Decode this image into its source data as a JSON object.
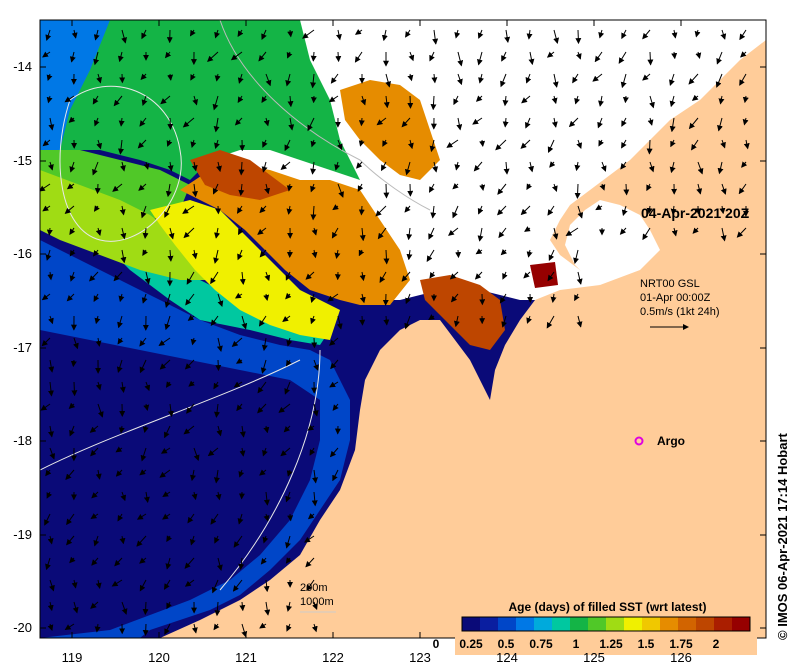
{
  "map": {
    "y_ticks": [
      "-14",
      "-15",
      "-16",
      "-17",
      "-18",
      "-19",
      "-20"
    ],
    "x_ticks": [
      "119",
      "120",
      "121",
      "122",
      "123",
      "124",
      "125",
      "126"
    ],
    "timestamp": "04-Apr-2021 20Z",
    "current_legend": {
      "line1": "NRT00 GSL",
      "line2": "01-Apr 00:00Z",
      "line3": "0.5m/s (1kt 24h)"
    },
    "argo_label": "Argo",
    "contour_legend": {
      "line1": "200m",
      "line2": "1000m"
    },
    "credit": "IMOS 06-Apr-2021 17:14 Hobart",
    "colorbar": {
      "title": "Age (days) of filled SST (wrt latest)",
      "ticks": [
        "0",
        "0.25",
        "0.5",
        "0.75",
        "1",
        "1.25",
        "1.5",
        "1.75",
        "2"
      ],
      "colors": [
        "#0a0a78",
        "#0a1ea0",
        "#0046c8",
        "#0078e6",
        "#00aadc",
        "#00c8a0",
        "#14b446",
        "#50c828",
        "#a0dc14",
        "#f0f000",
        "#f0c800",
        "#e68c00",
        "#d26400",
        "#be4600",
        "#aa1e00",
        "#960000"
      ]
    },
    "colors": {
      "land": "#ffcc99",
      "no_data": "#ffffff",
      "argo": "#e000e0"
    }
  }
}
